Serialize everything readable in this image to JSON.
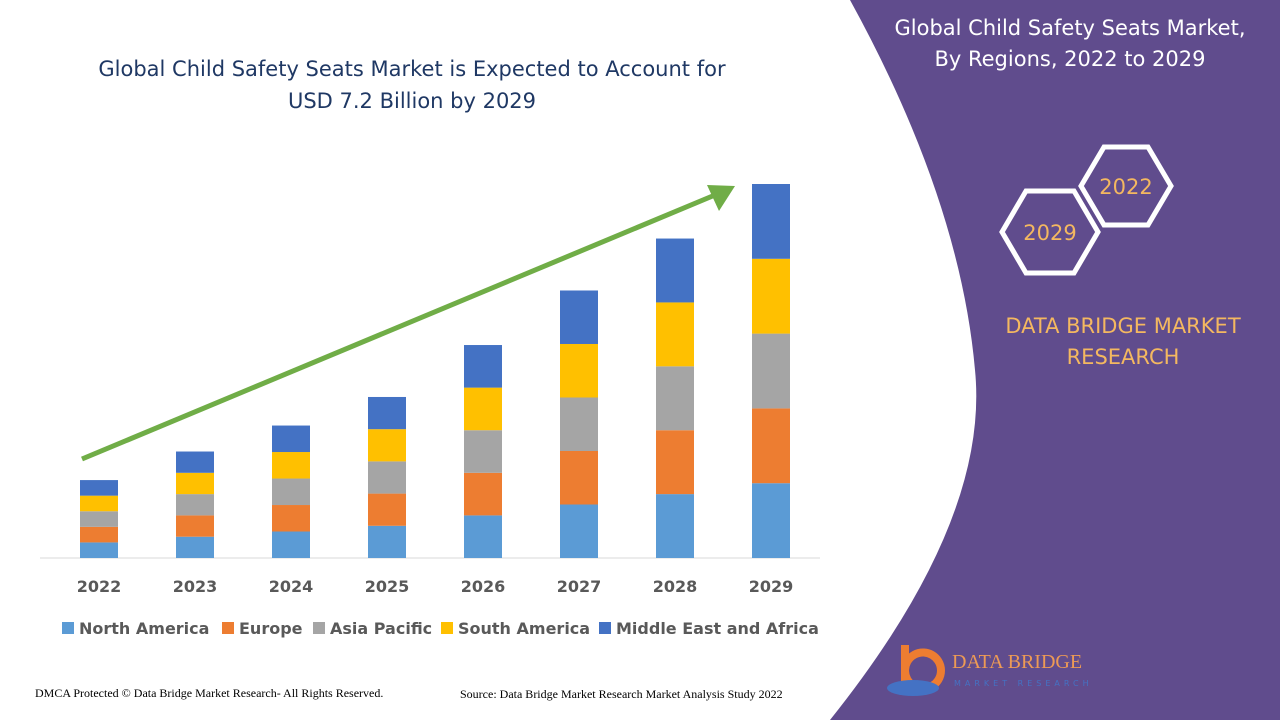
{
  "chart_data": {
    "type": "bar",
    "stacked": true,
    "title": "Global Child Safety Seats Market is Expected to Account for USD 7.2 Billion by 2029",
    "categories": [
      "2022",
      "2023",
      "2024",
      "2025",
      "2026",
      "2027",
      "2028",
      "2029"
    ],
    "series": [
      {
        "name": "North America",
        "color": "#5b9bd5",
        "values": [
          0.3,
          0.41,
          0.51,
          0.62,
          0.82,
          1.03,
          1.23,
          1.44
        ]
      },
      {
        "name": "Europe",
        "color": "#ed7d31",
        "values": [
          0.3,
          0.41,
          0.51,
          0.62,
          0.82,
          1.03,
          1.23,
          1.44
        ]
      },
      {
        "name": "Asia Pacific",
        "color": "#a5a5a5",
        "values": [
          0.3,
          0.41,
          0.51,
          0.62,
          0.82,
          1.03,
          1.23,
          1.44
        ]
      },
      {
        "name": "South America",
        "color": "#ffc000",
        "values": [
          0.3,
          0.41,
          0.51,
          0.62,
          0.82,
          1.03,
          1.23,
          1.44
        ]
      },
      {
        "name": "Middle East and Africa",
        "color": "#4472c4",
        "values": [
          0.3,
          0.41,
          0.51,
          0.62,
          0.82,
          1.03,
          1.23,
          1.44
        ]
      }
    ],
    "ylim": [
      0,
      7.2
    ]
  },
  "panel": {
    "title": "Global Child Safety Seats Market, By Regions, 2022 to 2029",
    "hex_labels": [
      "2022",
      "2029"
    ],
    "brand": "DATA BRIDGE MARKET RESEARCH"
  },
  "logo": {
    "name": "DATA BRIDGE",
    "tagline": "MARKET RESEARCH"
  },
  "footer": {
    "left": "DMCA Protected © Data Bridge Market Research- All Rights Reserved.",
    "right": "Source: Data Bridge Market Research Market Analysis Study 2022"
  }
}
